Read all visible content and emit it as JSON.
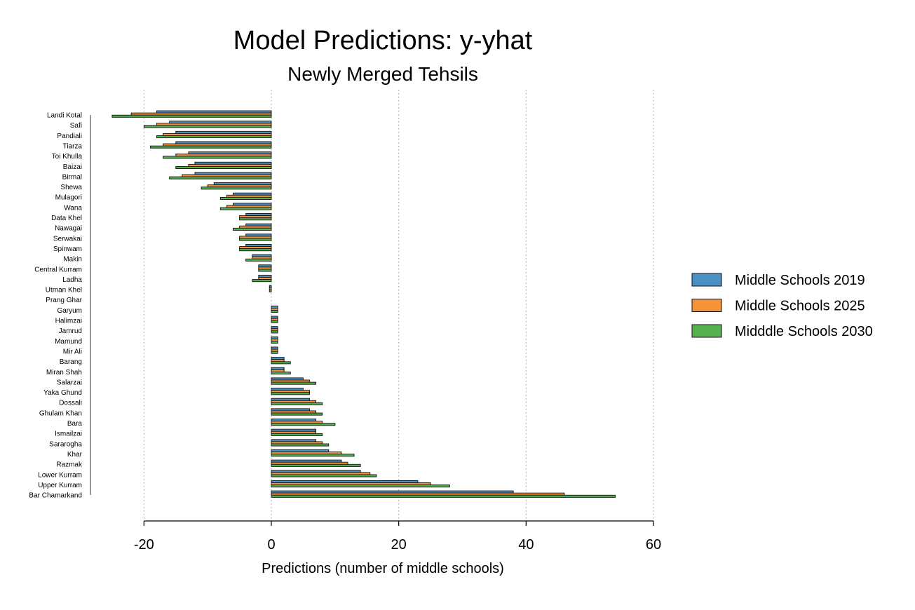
{
  "chart_data": {
    "type": "bar",
    "orientation": "horizontal",
    "title": "Model Predictions: y-yhat",
    "subtitle": "Newly Merged Tehsils",
    "xlabel": "Predictions (number of middle schools)",
    "ylabel": "",
    "xlim": [
      -20,
      60
    ],
    "xticks": [
      -20,
      0,
      20,
      40,
      60
    ],
    "grid": "vertical dotted",
    "legend_position": "right",
    "categories": [
      "Landi Kotal",
      "Safi",
      "Pandiali",
      "Tiarza",
      "Toi Khulla",
      "Baizai",
      "Birmal",
      "Shewa",
      "Mulagori",
      "Wana",
      "Data Khel",
      "Nawagai",
      "Serwakai",
      "Spinwam",
      "Makin",
      "Central Kurram",
      "Ladha",
      "Utman Khel",
      "Prang Ghar",
      "Garyum",
      "Halimzai",
      "Jamrud",
      "Mamund",
      "Mir Ali",
      "Barang",
      "Miran Shah",
      "Salarzai",
      "Yaka Ghund",
      "Dossali",
      "Ghulam Khan",
      "Bara",
      "Ismailzai",
      "Sararogha",
      "Khar",
      "Razmak",
      "Lower Kurram",
      "Upper Kurram",
      "Bar Chamarkand"
    ],
    "series": [
      {
        "name": "Middle Schools 2019",
        "color": "#4a90c4",
        "values": [
          -18,
          -16,
          -15,
          -15,
          -13,
          -12,
          -12,
          -9,
          -6,
          -6,
          -4,
          -4,
          -4,
          -4,
          -3,
          -2,
          -2,
          -0.3,
          0,
          1,
          1,
          1,
          1,
          1,
          2,
          2,
          5,
          5,
          6,
          6,
          7,
          7,
          7,
          9,
          11,
          14,
          23,
          38
        ]
      },
      {
        "name": "Middle Schools 2025",
        "color": "#f7923a",
        "values": [
          -22,
          -18,
          -17,
          -17,
          -15,
          -13,
          -14,
          -10,
          -7,
          -7,
          -5,
          -5,
          -5,
          -5,
          -3,
          -2,
          -2,
          -0.3,
          0,
          1,
          1,
          1,
          1,
          1,
          2,
          2,
          6,
          6,
          7,
          7,
          8,
          7,
          8,
          11,
          12,
          15.5,
          25,
          46
        ]
      },
      {
        "name": "Midddle Schools 2030",
        "color": "#55b04f",
        "values": [
          -25,
          -20,
          -18,
          -19,
          -17,
          -15,
          -16,
          -11,
          -8,
          -8,
          -5,
          -6,
          -5,
          -5,
          -4,
          -2,
          -3,
          -0.3,
          0,
          1,
          1,
          1,
          1,
          1,
          3,
          3,
          7,
          6,
          8,
          8,
          10,
          8,
          9,
          13,
          14,
          16.5,
          28,
          54
        ]
      }
    ]
  }
}
